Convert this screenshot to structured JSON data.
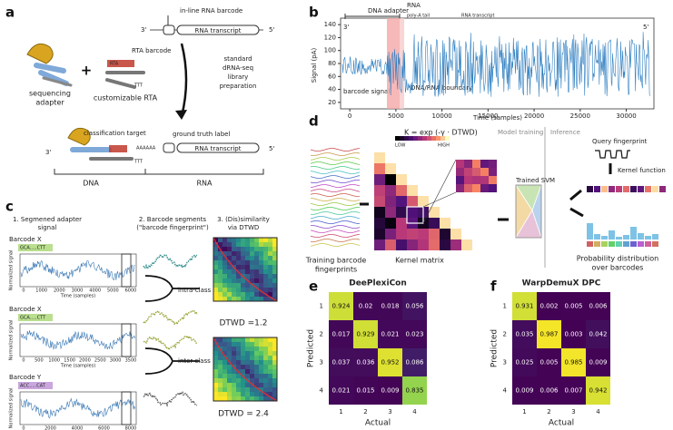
{
  "panel_a": {
    "label": "a",
    "inline_barcode": "in-line RNA barcode",
    "rna_transcript": "RNA transcript",
    "three_prime": "3'",
    "five_prime": "5'",
    "rta_barcode": "RTA barcode",
    "rta": "RTA",
    "ttt": "TTT",
    "polya": "AAAAAA",
    "adapter_label": [
      "sequencing",
      "adapter"
    ],
    "rta_label": "customizable RTA",
    "prep": [
      "standard",
      "dRNA-seq",
      "library",
      "preparation"
    ],
    "classification_target": "classification target",
    "ground_truth": "ground truth label",
    "dna": "DNA",
    "rna": "RNA"
  },
  "panel_b": {
    "label": "b",
    "ylabel": "Signal (pA)",
    "xlabel": "Time (samples)",
    "ylim": [
      10,
      150
    ],
    "yticks": [
      20,
      40,
      60,
      80,
      100,
      120,
      140
    ],
    "xlim": [
      -1000,
      33000
    ],
    "xticks": [
      0,
      5000,
      10000,
      15000,
      20000,
      25000,
      30000
    ],
    "dna_adapter": "DNA adapter",
    "rna": "RNA",
    "poly_a": "poly-A tail",
    "rna_transcript": "RNA transcript",
    "three_prime": "3'",
    "five_prime": "5'",
    "barcode_signal": "barcode signal",
    "boundary": "DNA/RNA boundary"
  },
  "panel_c": {
    "label": "c",
    "step1": [
      "1. Segmened adapter",
      "signal"
    ],
    "step2": [
      "2. Barcode segments",
      "(\"barcode fingerprint\")"
    ],
    "step3": [
      "3. (Dis)similarity",
      "via DTWD"
    ],
    "plots": [
      {
        "title": "Barcode X",
        "chip": "GCA.....CTT",
        "xticks": [
          0,
          1000,
          2000,
          3000,
          4000,
          5000,
          6000
        ]
      },
      {
        "title": "Barcode X",
        "chip": "GCA.....CTT",
        "xticks": [
          0,
          500,
          1000,
          1500,
          2000,
          2500,
          3000,
          3500
        ]
      },
      {
        "title": "Barcode Y",
        "chip": "ACC.....CAT",
        "xticks": [
          0,
          2000,
          4000,
          6000,
          8000
        ]
      }
    ],
    "ylabel": "Normalized signal",
    "xlabel": "Time (samples)",
    "intra": "intra-class",
    "inter": "inter-class",
    "dtwd_intra": "DTWD =1.2",
    "dtwd_inter": "DTWD = 2.4"
  },
  "panel_d": {
    "label": "d",
    "kernel_formula": "K = exp (-γ · DTWD)",
    "low": "LOW",
    "high": "HIGH",
    "model_training": "Model training",
    "inference": "Inference",
    "query": "Query fingerprint",
    "kernel_function": "Kernel function",
    "svm": "Trained SVM",
    "training": [
      "Training barcode",
      "fingerprints"
    ],
    "kernel_matrix": "Kernel matrix",
    "probability": [
      "Probability distribution",
      "over barcodes"
    ]
  },
  "panel_e": {
    "label": "e",
    "title": "DeePlexiCon",
    "ylabel": "Predicted",
    "xlabel": "Actual",
    "ticks": [
      1,
      2,
      3,
      4
    ],
    "matrix": [
      [
        0.924,
        0.02,
        0.018,
        0.056
      ],
      [
        0.017,
        0.929,
        0.021,
        0.023
      ],
      [
        0.037,
        0.036,
        0.952,
        0.086
      ],
      [
        0.021,
        0.015,
        0.009,
        0.835
      ]
    ]
  },
  "panel_f": {
    "label": "f",
    "title": "WarpDemuX DPC",
    "ylabel": "Predicted",
    "xlabel": "Actual",
    "ticks": [
      1,
      2,
      3,
      4
    ],
    "matrix": [
      [
        0.931,
        0.002,
        0.005,
        0.006
      ],
      [
        0.035,
        0.987,
        0.003,
        0.042
      ],
      [
        0.025,
        0.005,
        0.985,
        0.009
      ],
      [
        0.009,
        0.006,
        0.007,
        0.942
      ]
    ]
  }
}
